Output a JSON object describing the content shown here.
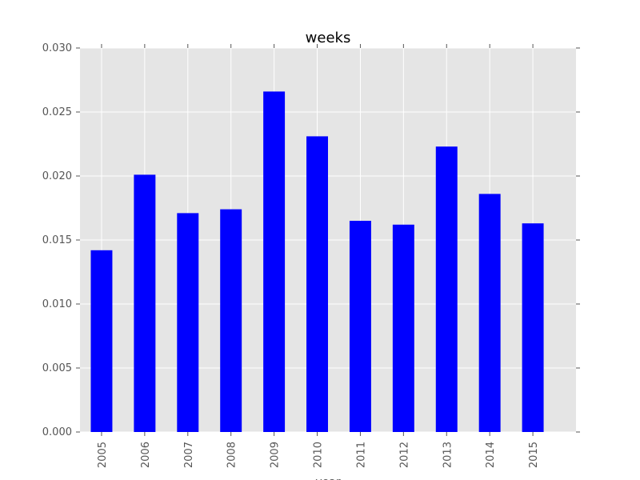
{
  "chart_data": {
    "type": "bar",
    "title": "weeks",
    "xlabel": "year",
    "ylabel": "",
    "categories": [
      "2005",
      "2006",
      "2007",
      "2008",
      "2009",
      "2010",
      "2011",
      "2012",
      "2013",
      "2014",
      "2015"
    ],
    "values": [
      0.0142,
      0.0201,
      0.0171,
      0.0174,
      0.0266,
      0.0231,
      0.0165,
      0.0162,
      0.0223,
      0.0186,
      0.0163
    ],
    "ylim": [
      0,
      0.03
    ],
    "yticks": [
      "0.000",
      "0.005",
      "0.010",
      "0.015",
      "0.020",
      "0.025",
      "0.030"
    ],
    "grid": true,
    "legend": "none",
    "colors": {
      "bar": "#0000ff",
      "plot_background": "#e5e5e5",
      "grid": "#ffffff"
    }
  }
}
